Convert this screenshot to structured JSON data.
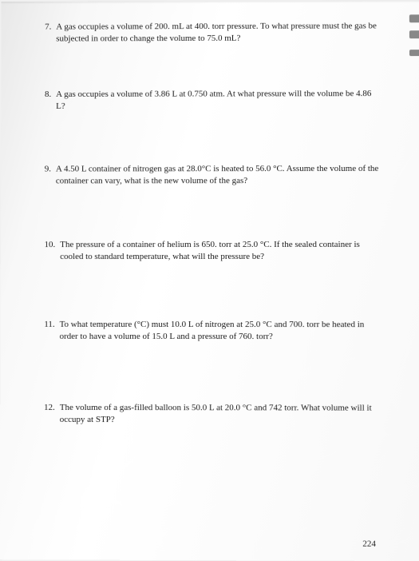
{
  "questions": [
    {
      "number": "7.",
      "text": "A gas occupies a volume of 200. mL at 400. torr pressure. To what pressure must the gas be subjected in order to change the volume to 75.0 mL?"
    },
    {
      "number": "8.",
      "text": "A gas occupies a volume of 3.86 L at 0.750 atm. At what pressure will the volume be 4.86 L?"
    },
    {
      "number": "9.",
      "text": "A 4.50 L container of nitrogen gas at 28.0°C is heated to 56.0 °C. Assume the volume of the container can vary, what is the new volume of the gas?"
    },
    {
      "number": "10.",
      "text": "The pressure of a container of helium is 650. torr at 25.0 °C. If the sealed container is cooled to standard temperature, what will the pressure be?"
    },
    {
      "number": "11.",
      "text": "To what temperature (°C) must 10.0 L of nitrogen at 25.0 °C and 700. torr be heated in order to have a volume of 15.0 L and a pressure of 760. torr?"
    },
    {
      "number": "12.",
      "text": "The volume of a gas-filled balloon is 50.0 L at 20.0 °C and 742 torr. What volume will it occupy at STP?"
    }
  ],
  "page_number": "224"
}
